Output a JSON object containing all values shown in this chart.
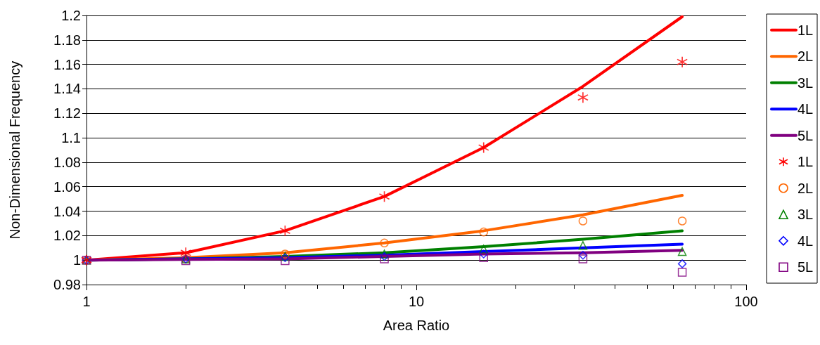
{
  "chart_data": {
    "type": "line",
    "xlabel": "Area Ratio",
    "ylabel": "Non-Dimensional Frequency",
    "log": "x",
    "grid": "y",
    "legend": "right",
    "x": [
      1,
      2,
      4,
      8,
      16,
      32,
      64
    ],
    "xlim": [
      1,
      100
    ],
    "xticks": [
      1,
      10,
      100
    ],
    "ylim": [
      0.98,
      1.2
    ],
    "yticks": [
      0.98,
      1,
      1.02,
      1.04,
      1.06,
      1.08,
      1.1,
      1.12,
      1.14,
      1.16,
      1.18,
      1.2
    ],
    "series": [
      {
        "name": "1L",
        "color": "#ff0000",
        "marker": "none",
        "values": [
          1,
          1.006,
          1.024,
          1.052,
          1.092,
          1.142,
          1.199
        ]
      },
      {
        "name": "2L",
        "color": "#ff6600",
        "marker": "none",
        "values": [
          1,
          1.002,
          1.006,
          1.014,
          1.024,
          1.037,
          1.053
        ]
      },
      {
        "name": "3L",
        "color": "#008000",
        "marker": "none",
        "values": [
          1,
          1.001,
          1.003,
          1.006,
          1.011,
          1.017,
          1.024
        ]
      },
      {
        "name": "4L",
        "color": "#0000ff",
        "marker": "none",
        "values": [
          1,
          1.001,
          1.002,
          1.004,
          1.007,
          1.01,
          1.013
        ]
      },
      {
        "name": "5L",
        "color": "#800080",
        "marker": "none",
        "values": [
          1,
          1.0005,
          1.001,
          1.003,
          1.005,
          1.006,
          1.008
        ]
      },
      {
        "name": "1L",
        "type": "scatter",
        "color": "#ff0000",
        "marker": "star",
        "values": [
          1,
          1.006,
          1.024,
          1.052,
          1.092,
          1.133,
          1.162
        ]
      },
      {
        "name": "2L",
        "type": "scatter",
        "color": "#ff6600",
        "marker": "circle",
        "values": [
          1,
          1.001,
          1.005,
          1.014,
          1.023,
          1.032,
          1.032
        ]
      },
      {
        "name": "3L",
        "type": "scatter",
        "color": "#008000",
        "marker": "triangle",
        "values": [
          1,
          1.001,
          1.003,
          1.005,
          1.009,
          1.012,
          1.007
        ]
      },
      {
        "name": "4L",
        "type": "scatter",
        "color": "#0000ff",
        "marker": "diamond",
        "values": [
          1,
          1.001,
          1.002,
          1.003,
          1.005,
          1.004,
          0.997
        ]
      },
      {
        "name": "5L",
        "type": "scatter",
        "color": "#800080",
        "marker": "square",
        "values": [
          1,
          0.9995,
          0.9995,
          1.001,
          1.002,
          1.001,
          0.99
        ]
      }
    ]
  }
}
